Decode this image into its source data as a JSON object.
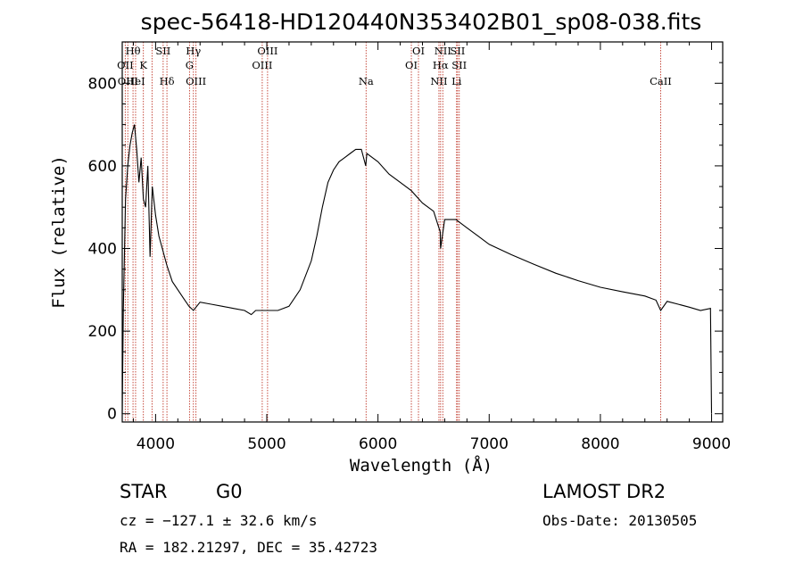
{
  "chart_data": {
    "type": "line",
    "title": "spec-56418-HD120440N353402B01_sp08-038.fits",
    "xlabel": "Wavelength (Å)",
    "ylabel": "Flux (relative)",
    "xlim": [
      3700,
      9100
    ],
    "ylim": [
      -20,
      900
    ],
    "x_ticks": [
      4000,
      5000,
      6000,
      7000,
      8000,
      9000
    ],
    "y_ticks": [
      0,
      200,
      400,
      600,
      800
    ],
    "grid": false,
    "legend": "none",
    "series": [
      {
        "x": [
          3700,
          3710,
          3730,
          3750,
          3770,
          3790,
          3810,
          3830,
          3850,
          3870,
          3890,
          3910,
          3930,
          3950,
          3970,
          4000,
          4030,
          4060,
          4100,
          4150,
          4200,
          4250,
          4300,
          4340,
          4400,
          4500,
          4600,
          4700,
          4800,
          4860,
          4900,
          5000,
          5100,
          5200,
          5300,
          5400,
          5450,
          5500,
          5550,
          5600,
          5650,
          5700,
          5750,
          5800,
          5850,
          5890,
          5900,
          5950,
          6000,
          6100,
          6200,
          6300,
          6400,
          6500,
          6560,
          6563,
          6600,
          6700,
          6800,
          6900,
          7000,
          7200,
          7400,
          7600,
          7800,
          8000,
          8200,
          8400,
          8500,
          8542,
          8600,
          8700,
          8800,
          8900,
          8990,
          9000
        ],
        "y": [
          0,
          250,
          520,
          600,
          650,
          680,
          700,
          640,
          560,
          620,
          520,
          500,
          600,
          380,
          550,
          480,
          430,
          400,
          360,
          320,
          300,
          280,
          260,
          250,
          270,
          265,
          260,
          255,
          250,
          240,
          250,
          250,
          250,
          260,
          300,
          370,
          430,
          500,
          560,
          590,
          610,
          620,
          630,
          640,
          640,
          600,
          630,
          620,
          610,
          580,
          560,
          540,
          510,
          490,
          440,
          400,
          470,
          470,
          450,
          430,
          410,
          385,
          362,
          340,
          322,
          306,
          295,
          285,
          275,
          250,
          272,
          265,
          258,
          250,
          255,
          0
        ]
      }
    ],
    "line_markers": [
      {
        "x": 3727,
        "label": "OII",
        "row": 2
      },
      {
        "x": 3750,
        "label": "OIII",
        "row": 3
      },
      {
        "x": 3797,
        "label": "Hθ",
        "row": 1
      },
      {
        "x": 3820,
        "label": "HeI",
        "row": 3
      },
      {
        "x": 3890,
        "label": "K",
        "row": 2
      },
      {
        "x": 3968,
        "label": "",
        "row": 0
      },
      {
        "x": 4068,
        "label": "SII",
        "row": 1
      },
      {
        "x": 4102,
        "label": "Hδ",
        "row": 3
      },
      {
        "x": 4305,
        "label": "G",
        "row": 2
      },
      {
        "x": 4340,
        "label": "Hγ",
        "row": 1
      },
      {
        "x": 4363,
        "label": "OIII",
        "row": 3
      },
      {
        "x": 4959,
        "label": "OIII",
        "row": 2
      },
      {
        "x": 5007,
        "label": "OIII",
        "row": 1
      },
      {
        "x": 5893,
        "label": "Na",
        "row": 3
      },
      {
        "x": 6300,
        "label": "OI",
        "row": 2
      },
      {
        "x": 6364,
        "label": "OI",
        "row": 1
      },
      {
        "x": 6548,
        "label": "NII",
        "row": 3
      },
      {
        "x": 6563,
        "label": "Hα",
        "row": 2
      },
      {
        "x": 6583,
        "label": "NII",
        "row": 1
      },
      {
        "x": 6707,
        "label": "Li",
        "row": 3
      },
      {
        "x": 6716,
        "label": "SII",
        "row": 1
      },
      {
        "x": 6731,
        "label": "SII",
        "row": 2
      },
      {
        "x": 8542,
        "label": "CaII",
        "row": 3
      }
    ]
  },
  "info": {
    "class_label": "STAR",
    "subclass": "G0",
    "survey": "LAMOST DR2",
    "cz": "cz = −127.1 ± 32.6 km/s",
    "obs_date": "Obs-Date: 20130505",
    "coords": "RA = 182.21297, DEC =  35.42723"
  },
  "colors": {
    "marker_line": "#c0392b",
    "spectrum": "#000000"
  }
}
